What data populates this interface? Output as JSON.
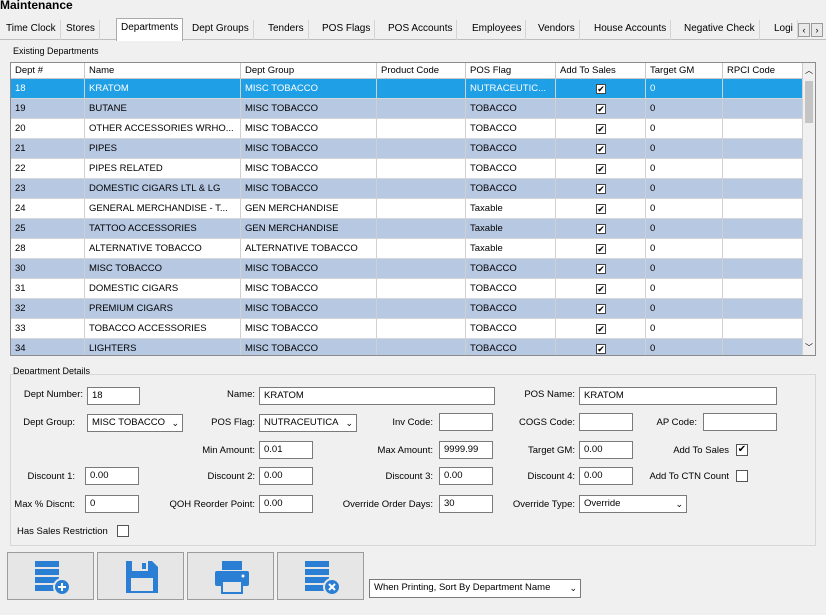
{
  "window": {
    "title": "Maintenance"
  },
  "tabs": [
    "Time Clock",
    "Stores",
    "Departments",
    "Dept Groups",
    "Tenders",
    "POS Flags",
    "POS Accounts",
    "Employees",
    "Vendors",
    "House Accounts",
    "Negative Check",
    "Logi"
  ],
  "tab_scroll": {
    "left": "‹",
    "right": "›"
  },
  "grid": {
    "group_label": "Existing Departments",
    "headers": [
      "Dept #",
      "Name",
      "Dept Group",
      "Product Code",
      "POS Flag",
      "Add To Sales",
      "Target GM",
      "RPCI Code"
    ],
    "rows": [
      [
        "18",
        "KRATOM",
        "MISC TOBACCO",
        "",
        "NUTRACEUTIC...",
        "✔",
        "0",
        ""
      ],
      [
        "19",
        "BUTANE",
        "MISC TOBACCO",
        "",
        "TOBACCO",
        "✔",
        "0",
        ""
      ],
      [
        "20",
        "OTHER ACCESSORIES WRHO...",
        "MISC TOBACCO",
        "",
        "TOBACCO",
        "✔",
        "0",
        ""
      ],
      [
        "21",
        "PIPES",
        "MISC TOBACCO",
        "",
        "TOBACCO",
        "✔",
        "0",
        ""
      ],
      [
        "22",
        "PIPES RELATED",
        "MISC TOBACCO",
        "",
        "TOBACCO",
        "✔",
        "0",
        ""
      ],
      [
        "23",
        "DOMESTIC CIGARS LTL & LG",
        "MISC TOBACCO",
        "",
        "TOBACCO",
        "✔",
        "0",
        ""
      ],
      [
        "24",
        "GENERAL MERCHANDISE - T...",
        "GEN MERCHANDISE",
        "",
        "Taxable",
        "✔",
        "0",
        ""
      ],
      [
        "25",
        "TATTOO ACCESSORIES",
        "GEN MERCHANDISE",
        "",
        "Taxable",
        "✔",
        "0",
        ""
      ],
      [
        "28",
        "ALTERNATIVE TOBACCO",
        "ALTERNATIVE TOBACCO",
        "",
        "Taxable",
        "✔",
        "0",
        ""
      ],
      [
        "30",
        "MISC TOBACCO",
        "MISC TOBACCO",
        "",
        "TOBACCO",
        "✔",
        "0",
        ""
      ],
      [
        "31",
        "DOMESTIC CIGARS",
        "MISC TOBACCO",
        "",
        "TOBACCO",
        "✔",
        "0",
        ""
      ],
      [
        "32",
        "PREMIUM CIGARS",
        "MISC TOBACCO",
        "",
        "TOBACCO",
        "✔",
        "0",
        ""
      ],
      [
        "33",
        "TOBACCO ACCESSORIES",
        "MISC TOBACCO",
        "",
        "TOBACCO",
        "✔",
        "0",
        ""
      ],
      [
        "34",
        "LIGHTERS",
        "MISC TOBACCO",
        "",
        "TOBACCO",
        "✔",
        "0",
        ""
      ]
    ],
    "selected_row": 0
  },
  "details": {
    "group_label": "Department Details",
    "dept_number": {
      "label": "Dept Number:",
      "value": "18"
    },
    "name": {
      "label": "Name:",
      "value": "KRATOM"
    },
    "pos_name": {
      "label": "POS Name:",
      "value": "KRATOM"
    },
    "dept_group": {
      "label": "Dept Group:",
      "value": "MISC TOBACCO"
    },
    "pos_flag": {
      "label": "POS Flag:",
      "value": "NUTRACEUTICA"
    },
    "inv_code": {
      "label": "Inv Code:",
      "value": ""
    },
    "cogs_code": {
      "label": "COGS Code:",
      "value": ""
    },
    "ap_code": {
      "label": "AP Code:",
      "value": ""
    },
    "min_amount": {
      "label": "Min Amount:",
      "value": "0.01"
    },
    "max_amount": {
      "label": "Max Amount:",
      "value": "9999.99"
    },
    "target_gm": {
      "label": "Target GM:",
      "value": "0.00"
    },
    "add_to_sales": {
      "label": "Add To Sales",
      "checked": "✔"
    },
    "discount1": {
      "label": "Discount 1:",
      "value": "0.00"
    },
    "discount2": {
      "label": "Discount 2:",
      "value": "0.00"
    },
    "discount3": {
      "label": "Discount 3:",
      "value": "0.00"
    },
    "discount4": {
      "label": "Discount 4:",
      "value": "0.00"
    },
    "add_to_ctn": {
      "label": "Add To CTN Count",
      "checked": ""
    },
    "max_discount": {
      "label": "Max % Discnt:",
      "value": "0"
    },
    "qoh_reorder": {
      "label": "QOH Reorder Point:",
      "value": "0.00"
    },
    "override_days": {
      "label": "Override Order Days:",
      "value": "30"
    },
    "override_type": {
      "label": "Override Type:",
      "value": "Override"
    },
    "has_sales_restriction": {
      "label": "Has Sales Restriction",
      "checked": ""
    }
  },
  "toolbar": {
    "add_icon": "add-department-icon",
    "save_icon": "save-icon",
    "print_icon": "print-icon",
    "delete_icon": "delete-department-icon",
    "sort_select": "When Printing, Sort By Department Name"
  },
  "colors": {
    "selected_row": "#1e9fe6",
    "alt_row": "#b7c8e3",
    "icon_blue": "#2a7fd4"
  }
}
